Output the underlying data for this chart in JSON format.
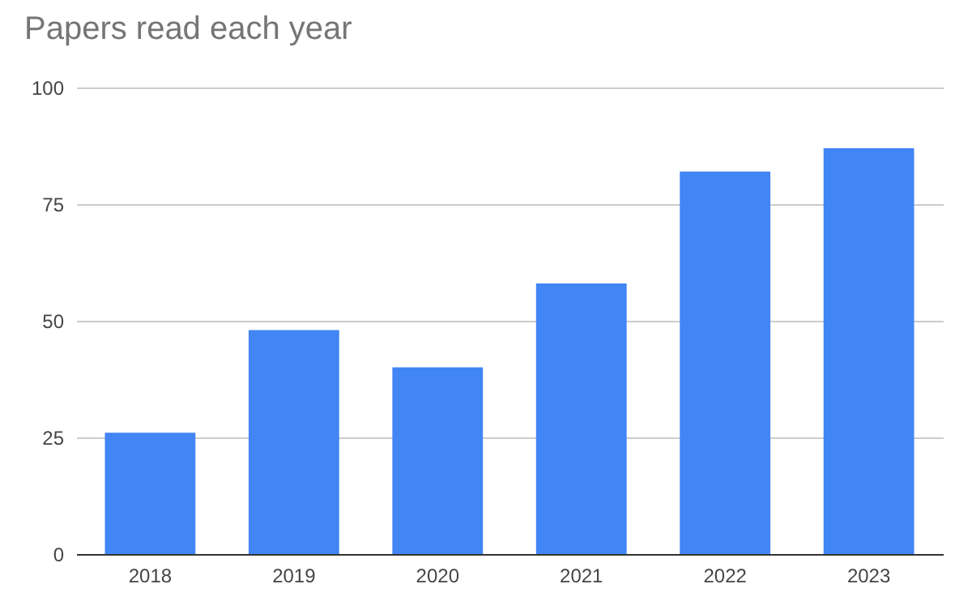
{
  "chart_data": {
    "type": "bar",
    "title": "Papers read each year",
    "categories": [
      "2018",
      "2019",
      "2020",
      "2021",
      "2022",
      "2023"
    ],
    "values": [
      26,
      48,
      40,
      58,
      82,
      87
    ],
    "color": "#4285f4",
    "ylim": [
      0,
      100
    ],
    "yticks": [
      0,
      25,
      50,
      75,
      100
    ],
    "grid": "y"
  }
}
